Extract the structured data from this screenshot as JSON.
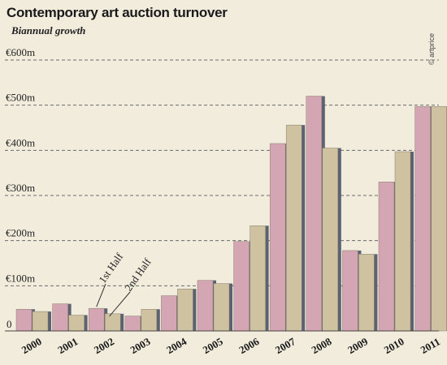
{
  "chart_data": {
    "type": "bar",
    "title": "Contemporary art auction turnover",
    "subtitle": "Biannual growth",
    "credit": "© artprice",
    "categories": [
      "2000",
      "2001",
      "2002",
      "2003",
      "2004",
      "2005",
      "2006",
      "2007",
      "2008",
      "2009",
      "2010",
      "2011"
    ],
    "series": [
      {
        "name": "1st Half",
        "values": [
          48,
          60,
          50,
          33,
          78,
          112,
          198,
          415,
          520,
          178,
          330,
          497
        ]
      },
      {
        "name": "2nd Half",
        "values": [
          43,
          35,
          38,
          48,
          93,
          105,
          233,
          456,
          405,
          170,
          397,
          497
        ]
      }
    ],
    "yticks": [
      {
        "value": 0,
        "label": "0"
      },
      {
        "value": 100,
        "label": "€100m"
      },
      {
        "value": 200,
        "label": "€200m"
      },
      {
        "value": 300,
        "label": "€300m"
      },
      {
        "value": 400,
        "label": "€400m"
      },
      {
        "value": 500,
        "label": "€500m"
      },
      {
        "value": 600,
        "label": "€600m"
      }
    ],
    "ylim": [
      0,
      600
    ],
    "grid": true,
    "legend": "annotations on 2002 bars",
    "colors": {
      "first_half": "#d4a5b3",
      "second_half": "#cfc2a0",
      "bar_shadow": "#5c6270",
      "grid": "#6a6a6a",
      "background": "#f2ecdd"
    }
  }
}
